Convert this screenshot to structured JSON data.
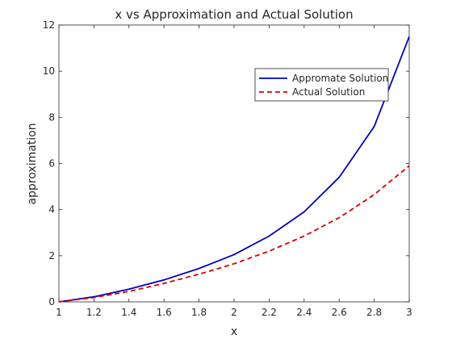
{
  "chart_data": {
    "type": "line",
    "title": "x vs Approximation and Actual Solution",
    "xlabel": "x",
    "ylabel": "approximation",
    "xlim": [
      1,
      3
    ],
    "ylim": [
      0,
      12
    ],
    "xticks": [
      1,
      1.2,
      1.4,
      1.6,
      1.8,
      2,
      2.2,
      2.4,
      2.6,
      2.8,
      3
    ],
    "xtick_labels": [
      "1",
      "1.2",
      "1.4",
      "1.6",
      "1.8",
      "2",
      "2.2",
      "2.4",
      "2.6",
      "2.8",
      "3"
    ],
    "yticks": [
      0,
      2,
      4,
      6,
      8,
      10,
      12
    ],
    "ytick_labels": [
      "0",
      "2",
      "4",
      "6",
      "8",
      "10",
      "12"
    ],
    "grid": false,
    "legend_position": "top-right",
    "x": [
      1,
      1.2,
      1.4,
      1.6,
      1.8,
      2,
      2.2,
      2.4,
      2.6,
      2.8,
      3
    ],
    "series": [
      {
        "name": "Appromate Solution",
        "values": [
          0,
          0.22,
          0.55,
          0.95,
          1.45,
          2.05,
          2.85,
          3.9,
          5.4,
          7.6,
          11.5
        ],
        "color": "#0000bf",
        "style": "solid"
      },
      {
        "name": "Actual Solution",
        "values": [
          0,
          0.19,
          0.45,
          0.8,
          1.2,
          1.65,
          2.2,
          2.85,
          3.65,
          4.65,
          5.9
        ],
        "color": "#d60000",
        "style": "dashed"
      }
    ]
  }
}
